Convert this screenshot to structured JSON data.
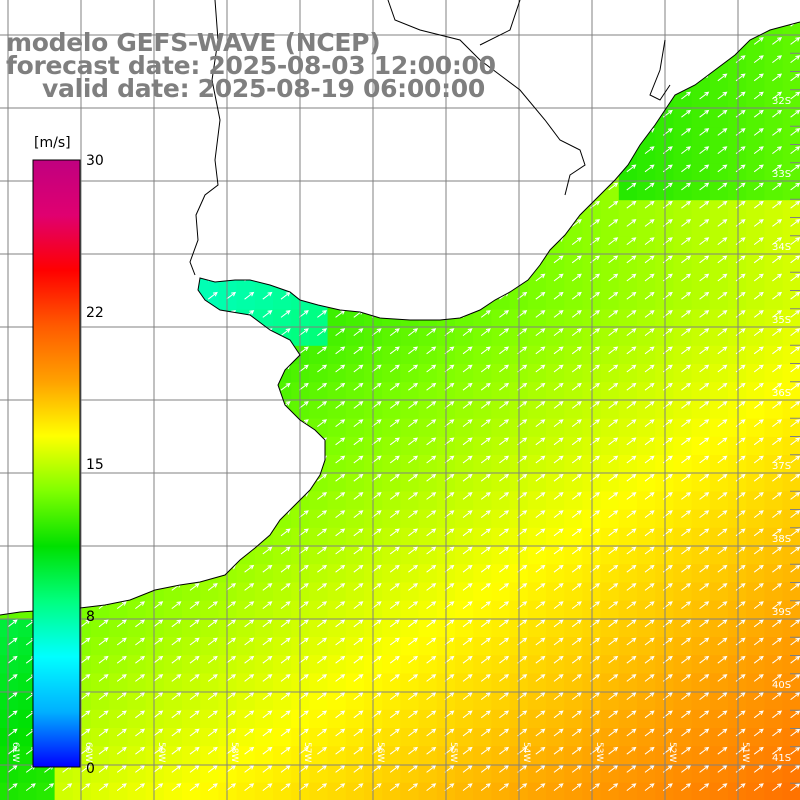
{
  "title": {
    "line1": "modelo GEFS-WAVE (NCEP)",
    "line2": "forecast date: 2025-08-03 12:00:00",
    "line3": "valid date: 2025-08-19 06:00:00"
  },
  "colorbar": {
    "unit": "[m/s]",
    "ticks": [
      "30",
      "22",
      "15",
      "8",
      "0"
    ],
    "stops": [
      "#0000ff",
      "#00b0ff",
      "#00ffff",
      "#00ff80",
      "#00e000",
      "#80ff00",
      "#ffff00",
      "#ffa000",
      "#ff5a00",
      "#ff0000",
      "#e00070",
      "#c00080"
    ]
  },
  "lat_labels": [
    "32S",
    "33S",
    "34S",
    "35S",
    "36S",
    "37S",
    "38S",
    "39S",
    "40S",
    "41S"
  ],
  "lon_labels": [
    "61W",
    "60W",
    "59W",
    "58W",
    "57W",
    "56W",
    "55W",
    "54W",
    "53W",
    "52W",
    "51W"
  ],
  "map": {
    "variable": "wind speed",
    "land_color": "#ffffff",
    "grid_color": "#808080",
    "coast_color": "#000000",
    "arrow_color": "#ffffff"
  }
}
